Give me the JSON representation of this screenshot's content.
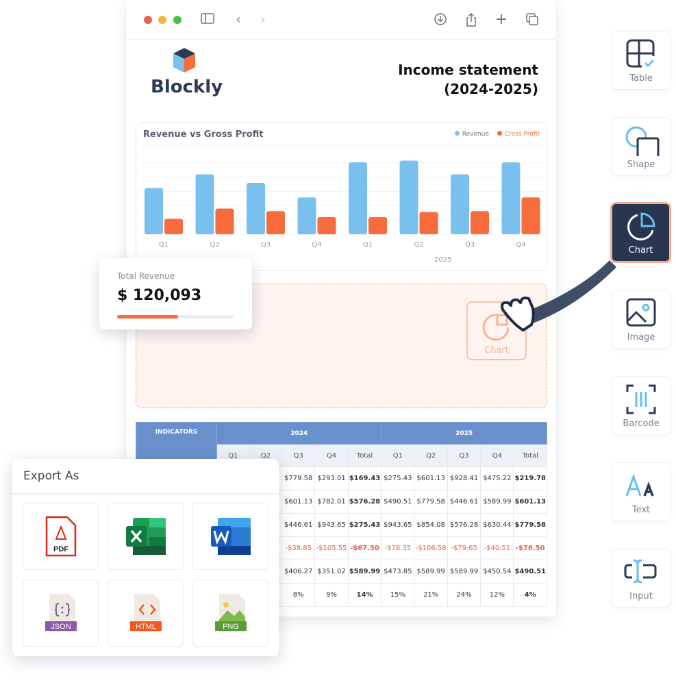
{
  "window": {
    "controls": [
      "close",
      "minimize",
      "maximize"
    ],
    "toolbar_icons": [
      "sidebar-icon",
      "back-icon",
      "forward-icon",
      "download-icon",
      "share-icon",
      "plus-icon",
      "tabs-icon"
    ]
  },
  "brand": {
    "name": "Blockly"
  },
  "document": {
    "title_line1": "Income statement",
    "title_line2": "(2024-2025)"
  },
  "chart_data": {
    "type": "bar",
    "title": "Revenue vs Gross Profit",
    "categories": [
      "Q1",
      "Q2",
      "Q3",
      "Q4",
      "Q1",
      "Q2",
      "Q3",
      "Q4"
    ],
    "group_label": "2025",
    "series": [
      {
        "name": "Revenue",
        "color": "#7ac0ee",
        "values": [
          54,
          70,
          60,
          43,
          84,
          86,
          70,
          84
        ]
      },
      {
        "name": "Cross Profit",
        "color": "#f76b3c",
        "values": [
          18,
          30,
          27,
          20,
          20,
          26,
          27,
          43
        ]
      }
    ],
    "ylim": [
      0,
      100
    ],
    "grid": true,
    "legend": "top-right"
  },
  "total_revenue": {
    "label": "Total Revenue",
    "value": "$ 120,093",
    "progress": 0.52,
    "color": "#f76b3c"
  },
  "drop_zone": {
    "ghost_label": "Chart"
  },
  "table": {
    "indicators_header": "INDICATORS",
    "years": [
      "2024",
      "2025"
    ],
    "quarters": [
      "Q1",
      "Q2",
      "Q3",
      "Q4",
      "Total",
      "Q1",
      "Q2",
      "Q3",
      "Q4",
      "Total"
    ],
    "rows": [
      [
        "",
        "",
        "$779.58",
        "$293.01",
        "$169.43",
        "$275.43",
        "$601.13",
        "$928.41",
        "$475.22",
        "$219.78"
      ],
      [
        "",
        "",
        "$601.13",
        "$782.01",
        "$576.28",
        "$490.51",
        "$779.58",
        "$446.61",
        "$589.99",
        "$601.13"
      ],
      [
        "",
        "",
        "$446.61",
        "$943.65",
        "$275.43",
        "$943.65",
        "$854.08",
        "$576.28",
        "$630.44",
        "$779.58"
      ],
      [
        "",
        "",
        "-$38.85",
        "-$105.55",
        "-$67.50",
        "-$78.35",
        "-$106.58",
        "-$79.65",
        "-$40.51",
        "-$76.50"
      ],
      [
        "",
        "",
        "$406.27",
        "$351.02",
        "$589.99",
        "$473.85",
        "$589.99",
        "$589.99",
        "$450.54",
        "$490.51"
      ],
      [
        "",
        "",
        "8%",
        "9%",
        "14%",
        "15%",
        "21%",
        "24%",
        "12%",
        "4%"
      ]
    ]
  },
  "export": {
    "title": "Export As",
    "formats": [
      "PDF",
      "XLS",
      "DOC",
      "JSON",
      "HTML",
      "PNG"
    ]
  },
  "tools": [
    {
      "label": "Table"
    },
    {
      "label": "Shape"
    },
    {
      "label": "Chart",
      "active": true
    },
    {
      "label": "Image"
    },
    {
      "label": "Barcode"
    },
    {
      "label": "Text"
    },
    {
      "label": "Input"
    }
  ]
}
